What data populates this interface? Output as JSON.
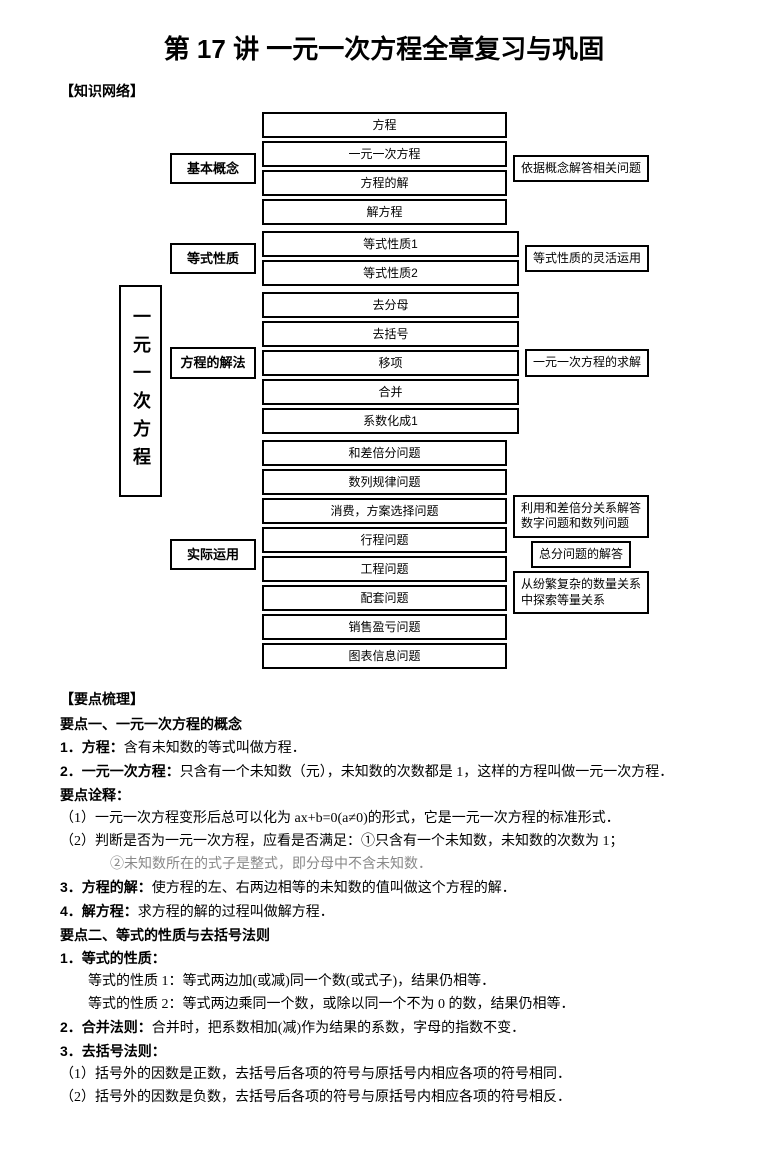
{
  "title": "第 17 讲  一元一次方程全章复习与巩固",
  "section1": "【知识网络】",
  "diagram": {
    "root": "一元一次方程",
    "branches": [
      {
        "label": "基本概念",
        "mids": [
          "方程",
          "一元一次方程",
          "方程的解",
          "解方程"
        ],
        "rights": [
          "依据概念解答相关问题"
        ]
      },
      {
        "label": "等式性质",
        "mids": [
          "等式性质1",
          "等式性质2"
        ],
        "rights": [
          "等式性质的灵活运用"
        ]
      },
      {
        "label": "方程的解法",
        "mids": [
          "去分母",
          "去括号",
          "移项",
          "合并",
          "系数化成1"
        ],
        "rights": [
          "一元一次方程的求解"
        ]
      },
      {
        "label": "实际运用",
        "mids": [
          "和差倍分问题",
          "数列规律问题",
          "消费，方案选择问题",
          "行程问题",
          "工程问题",
          "配套问题",
          "销售盈亏问题",
          "图表信息问题"
        ],
        "rights": [
          "利用和差倍分关系解答数字问题和数列问题",
          "总分问题的解答",
          "从纷繁复杂的数量关系中探索等量关系"
        ]
      }
    ]
  },
  "section2": "【要点梳理】",
  "h_yd1": "要点一、一元一次方程的概念",
  "p1_label": "1．方程：",
  "p1_text": "含有未知数的等式叫做方程．",
  "p2_label": "2．一元一次方程：",
  "p2_text": "只含有一个未知数（元），未知数的次数都是 1，这样的方程叫做一元一次方程．",
  "h_yq": "要点诠释：",
  "yq1": "（1）一元一次方程变形后总可以化为 ax+b=0(a≠0)的形式，它是一元一次方程的标准形式．",
  "yq2": "（2）判断是否为一元一次方程，应看是否满足：①只含有一个未知数，未知数的次数为 1；",
  "yq2b": "②未知数所在的式子是整式，即分母中不含未知数．",
  "p3_label": "3．方程的解：",
  "p3_text": "使方程的左、右两边相等的未知数的值叫做这个方程的解．",
  "p4_label": "4．解方程：",
  "p4_text": "求方程的解的过程叫做解方程．",
  "h_yd2": "要点二、等式的性质与去括号法则",
  "p5": "1．等式的性质：",
  "p5a": "等式的性质 1：等式两边加(或减)同一个数(或式子)，结果仍相等．",
  "p5b": "等式的性质 2：等式两边乘同一个数，或除以同一个不为 0 的数，结果仍相等．",
  "p6_label": "2．合并法则：",
  "p6_text": "合并时，把系数相加(减)作为结果的系数，字母的指数不变．",
  "p7": "3．去括号法则：",
  "p7a": "（1）括号外的因数是正数，去括号后各项的符号与原括号内相应各项的符号相同．",
  "p7b": "（2）括号外的因数是负数，去括号后各项的符号与原括号内相应各项的符号相反．"
}
